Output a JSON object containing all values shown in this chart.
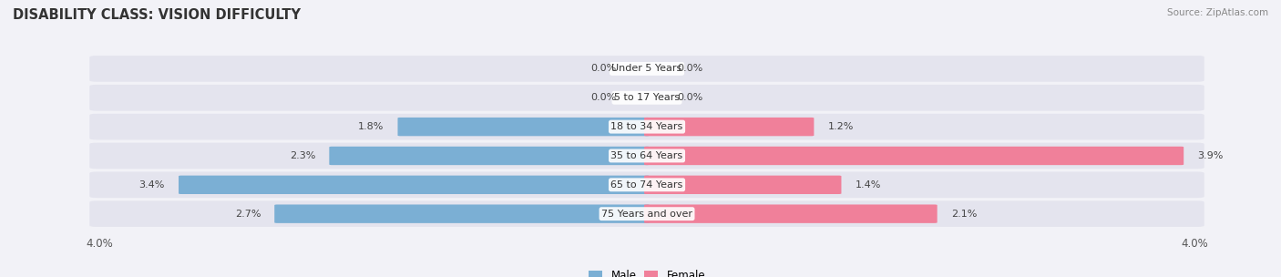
{
  "title": "DISABILITY CLASS: VISION DIFFICULTY",
  "source": "Source: ZipAtlas.com",
  "categories": [
    "Under 5 Years",
    "5 to 17 Years",
    "18 to 34 Years",
    "35 to 64 Years",
    "65 to 74 Years",
    "75 Years and over"
  ],
  "male_values": [
    0.0,
    0.0,
    1.8,
    2.3,
    3.4,
    2.7
  ],
  "female_values": [
    0.0,
    0.0,
    1.2,
    3.9,
    1.4,
    2.1
  ],
  "male_color": "#7BAFD4",
  "female_color": "#F0809A",
  "bg_color": "#F2F2F7",
  "row_bg_color": "#E4E4EE",
  "xlim": 4.0,
  "title_fontsize": 10.5,
  "label_fontsize": 8.0,
  "tick_fontsize": 8.5,
  "figsize": [
    14.06,
    3.04
  ],
  "dpi": 100
}
